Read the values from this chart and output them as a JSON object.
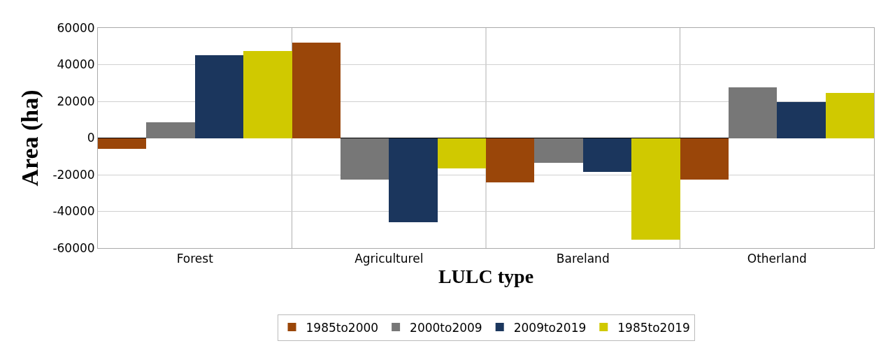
{
  "chart_data": {
    "type": "bar",
    "xlabel": "LULC type",
    "ylabel": "Area (ha)",
    "categories": [
      "Forest",
      "Agriculturel",
      "Bareland",
      "Otherland"
    ],
    "series": [
      {
        "name": "1985to2000",
        "color": "#9a4609",
        "values": [
          -6000,
          52000,
          -24000,
          -22500
        ]
      },
      {
        "name": "2000to2009",
        "color": "#777777",
        "values": [
          8500,
          -22500,
          -13500,
          27500
        ]
      },
      {
        "name": "2009to2019",
        "color": "#1b365d",
        "values": [
          45000,
          -46000,
          -18500,
          19500
        ]
      },
      {
        "name": "1985to2019",
        "color": "#d0c900",
        "values": [
          47500,
          -16500,
          -55500,
          24500
        ]
      }
    ],
    "ylim": [
      -60000,
      60000
    ],
    "yticks": [
      -60000,
      -40000,
      -20000,
      0,
      20000,
      40000,
      60000
    ],
    "grid": true,
    "legend": "bottom"
  }
}
